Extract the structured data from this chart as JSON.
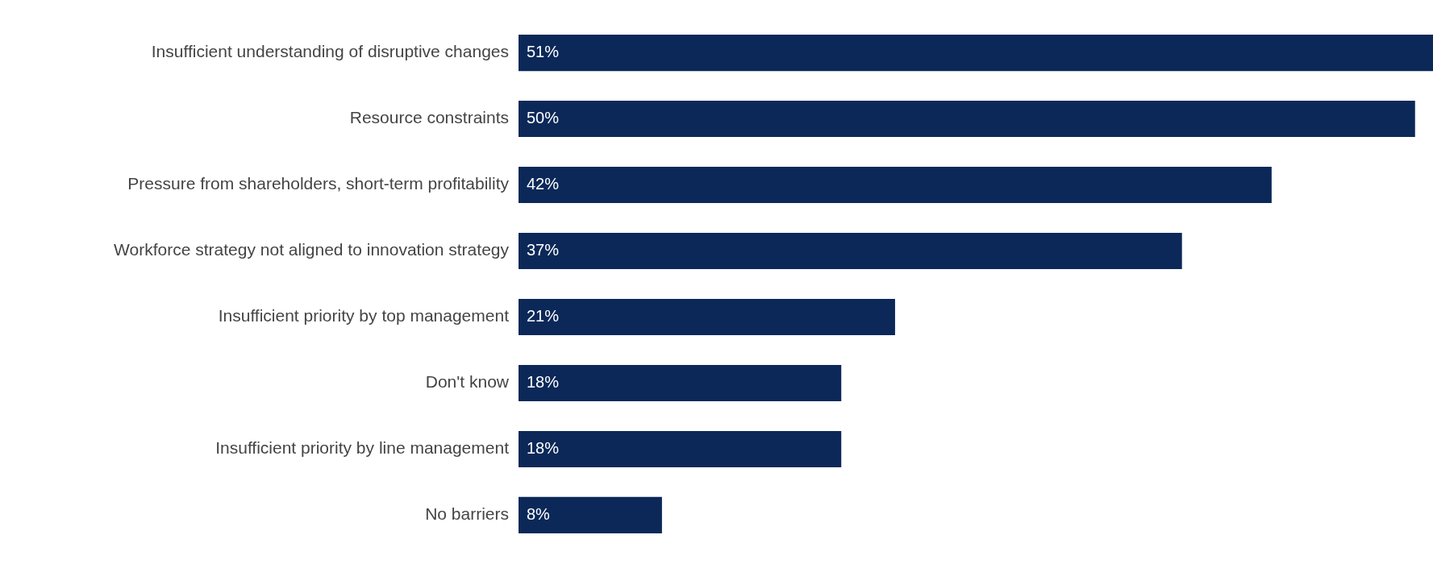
{
  "chart_data": {
    "type": "bar",
    "orientation": "horizontal",
    "categories": [
      "Insufficient understanding of disruptive changes",
      "Resource constraints",
      "Pressure from shareholders, short-term profitability",
      "Workforce strategy not aligned to innovation strategy",
      "Insufficient priority by top management",
      "Don't know",
      "Insufficient priority by line management",
      "No barriers"
    ],
    "values": [
      51,
      50,
      42,
      37,
      21,
      18,
      18,
      8
    ],
    "value_labels": [
      "51%",
      "50%",
      "42%",
      "37%",
      "21%",
      "18%",
      "18%",
      "8%"
    ],
    "color": "#0b2858",
    "grid": false,
    "legend": false
  }
}
